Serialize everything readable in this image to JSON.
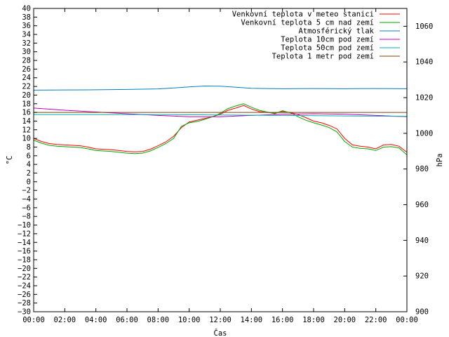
{
  "chart_data": {
    "type": "line",
    "xlabel": "Čas",
    "ylabel_left": "°C",
    "ylabel_right": "hPa",
    "x_ticks": [
      "00:00",
      "02:00",
      "04:00",
      "06:00",
      "08:00",
      "10:00",
      "12:00",
      "14:00",
      "16:00",
      "18:00",
      "20:00",
      "22:00",
      "00:00"
    ],
    "x_range_hours": [
      0,
      24
    ],
    "ylim_left": [
      -30,
      40
    ],
    "ylim_right": [
      900,
      1070
    ],
    "y_ticks_left_step": 2,
    "y_ticks_right": [
      900,
      920,
      940,
      960,
      980,
      1000,
      1020,
      1040,
      1060
    ],
    "grid": false,
    "legend_position": "top-right",
    "series": [
      {
        "name": "Venkovní teplota v meteo stanici",
        "color": "#ff0000",
        "axis": "left",
        "x": [
          0,
          0.5,
          1,
          1.5,
          2,
          2.5,
          3,
          3.5,
          4,
          4.5,
          5,
          5.5,
          6,
          6.5,
          7,
          7.5,
          8,
          8.5,
          9,
          9.5,
          10,
          10.5,
          11,
          11.5,
          12,
          12.5,
          13,
          13.5,
          14,
          14.5,
          15,
          15.5,
          16,
          16.5,
          17,
          17.5,
          18,
          18.5,
          19,
          19.5,
          20,
          20.5,
          21,
          21.5,
          22,
          22.5,
          23,
          23.5,
          24
        ],
        "y": [
          10,
          9.3,
          8.8,
          8.6,
          8.5,
          8.4,
          8.3,
          8.0,
          7.6,
          7.5,
          7.4,
          7.2,
          7.0,
          6.9,
          7.0,
          7.5,
          8.3,
          9.2,
          10.5,
          12.5,
          13.8,
          14.2,
          14.6,
          15.0,
          15.6,
          16.5,
          17.0,
          17.6,
          16.8,
          16.2,
          16.0,
          15.8,
          16.2,
          16.0,
          15.5,
          14.8,
          14.0,
          13.6,
          13.0,
          12.2,
          10.0,
          8.5,
          8.2,
          8.0,
          7.6,
          8.5,
          8.6,
          8.2,
          6.8
        ]
      },
      {
        "name": "Venkovní teplota 5 cm nad zemí",
        "color": "#00aa00",
        "axis": "left",
        "x": [
          0,
          0.5,
          1,
          1.5,
          2,
          2.5,
          3,
          3.5,
          4,
          4.5,
          5,
          5.5,
          6,
          6.5,
          7,
          7.5,
          8,
          8.5,
          9,
          9.5,
          10,
          10.5,
          11,
          11.5,
          12,
          12.5,
          13,
          13.5,
          14,
          14.5,
          15,
          15.5,
          16,
          16.5,
          17,
          17.5,
          18,
          18.5,
          19,
          19.5,
          20,
          20.5,
          21,
          21.5,
          22,
          22.5,
          23,
          23.5,
          24
        ],
        "y": [
          9.6,
          8.9,
          8.4,
          8.2,
          8.1,
          8.0,
          7.9,
          7.6,
          7.2,
          7.1,
          7.0,
          6.8,
          6.6,
          6.5,
          6.6,
          7.1,
          7.9,
          8.8,
          10.0,
          12.8,
          13.6,
          13.9,
          14.4,
          15.0,
          15.8,
          16.9,
          17.5,
          18.0,
          17.2,
          16.5,
          16.1,
          15.7,
          16.4,
          15.9,
          15.0,
          14.2,
          13.6,
          13.1,
          12.5,
          11.5,
          9.3,
          8.0,
          7.7,
          7.6,
          7.2,
          8.0,
          8.1,
          7.8,
          6.2
        ]
      },
      {
        "name": "Atmosférický tlak",
        "color": "#0080c0",
        "axis": "right",
        "x": [
          0,
          2,
          4,
          6,
          8,
          9,
          10,
          11,
          12,
          13,
          14,
          16,
          18,
          20,
          22,
          24
        ],
        "y": [
          1024.2,
          1024.3,
          1024.4,
          1024.6,
          1024.9,
          1025.4,
          1026.0,
          1026.5,
          1026.4,
          1025.8,
          1025.2,
          1025.0,
          1025.1,
          1025.0,
          1025.1,
          1025.0
        ]
      },
      {
        "name": "Teplota 10cm pod zemí",
        "color": "#c000c0",
        "axis": "left",
        "x": [
          0,
          2,
          4,
          6,
          8,
          10,
          12,
          14,
          16,
          18,
          20,
          22,
          24
        ],
        "y": [
          17.0,
          16.5,
          16.1,
          15.7,
          15.3,
          15.0,
          15.0,
          15.3,
          15.6,
          15.7,
          15.6,
          15.3,
          15.0
        ]
      },
      {
        "name": "Teplota 50cm pod zemí",
        "color": "#00b0b0",
        "axis": "left",
        "x": [
          0,
          4,
          8,
          12,
          16,
          20,
          24
        ],
        "y": [
          15.5,
          15.5,
          15.5,
          15.4,
          15.3,
          15.2,
          15.1
        ]
      },
      {
        "name": "Teplota 1 metr pod zemí",
        "color": "#804000",
        "axis": "left",
        "x": [
          0,
          24
        ],
        "y": [
          16.0,
          16.0
        ]
      }
    ]
  }
}
